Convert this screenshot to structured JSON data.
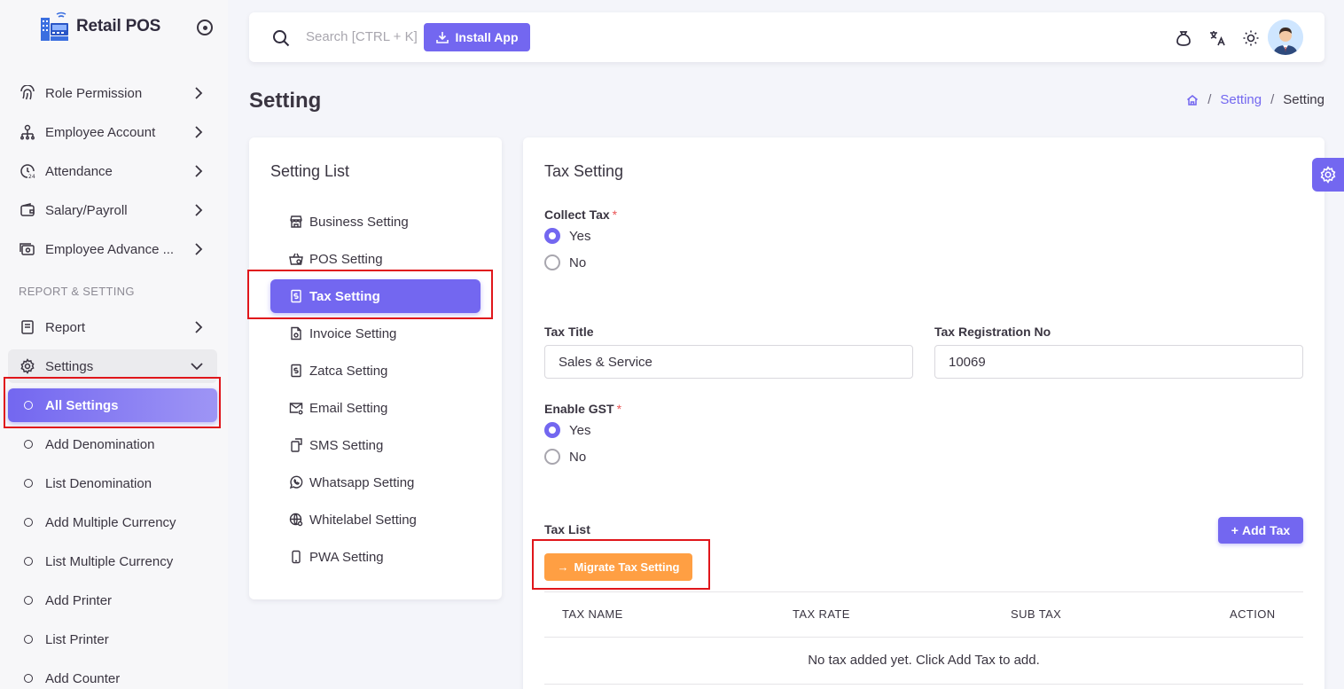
{
  "sidebar": {
    "brand": "Retail POS",
    "items": [
      {
        "label": "Role Permission",
        "icon": "fingerprint-icon"
      },
      {
        "label": "Employee Account",
        "icon": "org-chart-icon"
      },
      {
        "label": "Attendance",
        "icon": "clock-24-icon"
      },
      {
        "label": "Salary/Payroll",
        "icon": "wallet-icon"
      },
      {
        "label": "Employee Advance ...",
        "icon": "cash-icon"
      }
    ],
    "section_label": "REPORT & SETTING",
    "report_label": "Report",
    "settings_label": "Settings",
    "sub_items": [
      "All Settings",
      "Add Denomination",
      "List Denomination",
      "Add Multiple Currency",
      "List Multiple Currency",
      "Add Printer",
      "List Printer",
      "Add Counter"
    ]
  },
  "topbar": {
    "search_placeholder": "Search [CTRL + K]",
    "install_label": "Install App"
  },
  "page": {
    "title": "Setting",
    "breadcrumb": [
      "Setting",
      "Setting"
    ]
  },
  "setting_list": {
    "title": "Setting List",
    "items": [
      {
        "label": "Business Setting",
        "icon": "store-icon"
      },
      {
        "label": "POS Setting",
        "icon": "basket-icon"
      },
      {
        "label": "Tax Setting",
        "icon": "receipt-dollar-icon"
      },
      {
        "label": "Invoice Setting",
        "icon": "invoice-icon"
      },
      {
        "label": "Zatca Setting",
        "icon": "receipt-icon"
      },
      {
        "label": "Email Setting",
        "icon": "mail-gear-icon"
      },
      {
        "label": "SMS Setting",
        "icon": "sms-icon"
      },
      {
        "label": "Whatsapp Setting",
        "icon": "whatsapp-icon"
      },
      {
        "label": "Whitelabel Setting",
        "icon": "globe-gear-icon"
      },
      {
        "label": "PWA Setting",
        "icon": "mobile-icon"
      }
    ]
  },
  "tax": {
    "title": "Tax Setting",
    "collect_tax_label": "Collect Tax",
    "collect_tax_options": [
      "Yes",
      "No"
    ],
    "collect_tax_selected": "Yes",
    "tax_title_label": "Tax Title",
    "tax_title_value": "Sales & Service",
    "tax_reg_label": "Tax Registration No",
    "tax_reg_value": "10069",
    "gst_label": "Enable GST",
    "gst_options": [
      "Yes",
      "No"
    ],
    "gst_selected": "Yes",
    "tax_list_label": "Tax List",
    "add_tax_label": "Add Tax",
    "migrate_label": "Migrate Tax Setting",
    "table_headers": [
      "TAX NAME",
      "TAX RATE",
      "SUB TAX",
      "ACTION"
    ],
    "empty_message": "No tax added yet. Click Add Tax to add."
  },
  "colors": {
    "primary": "#7367f0",
    "warning": "#ff9f43",
    "highlight": "#e0161b"
  }
}
